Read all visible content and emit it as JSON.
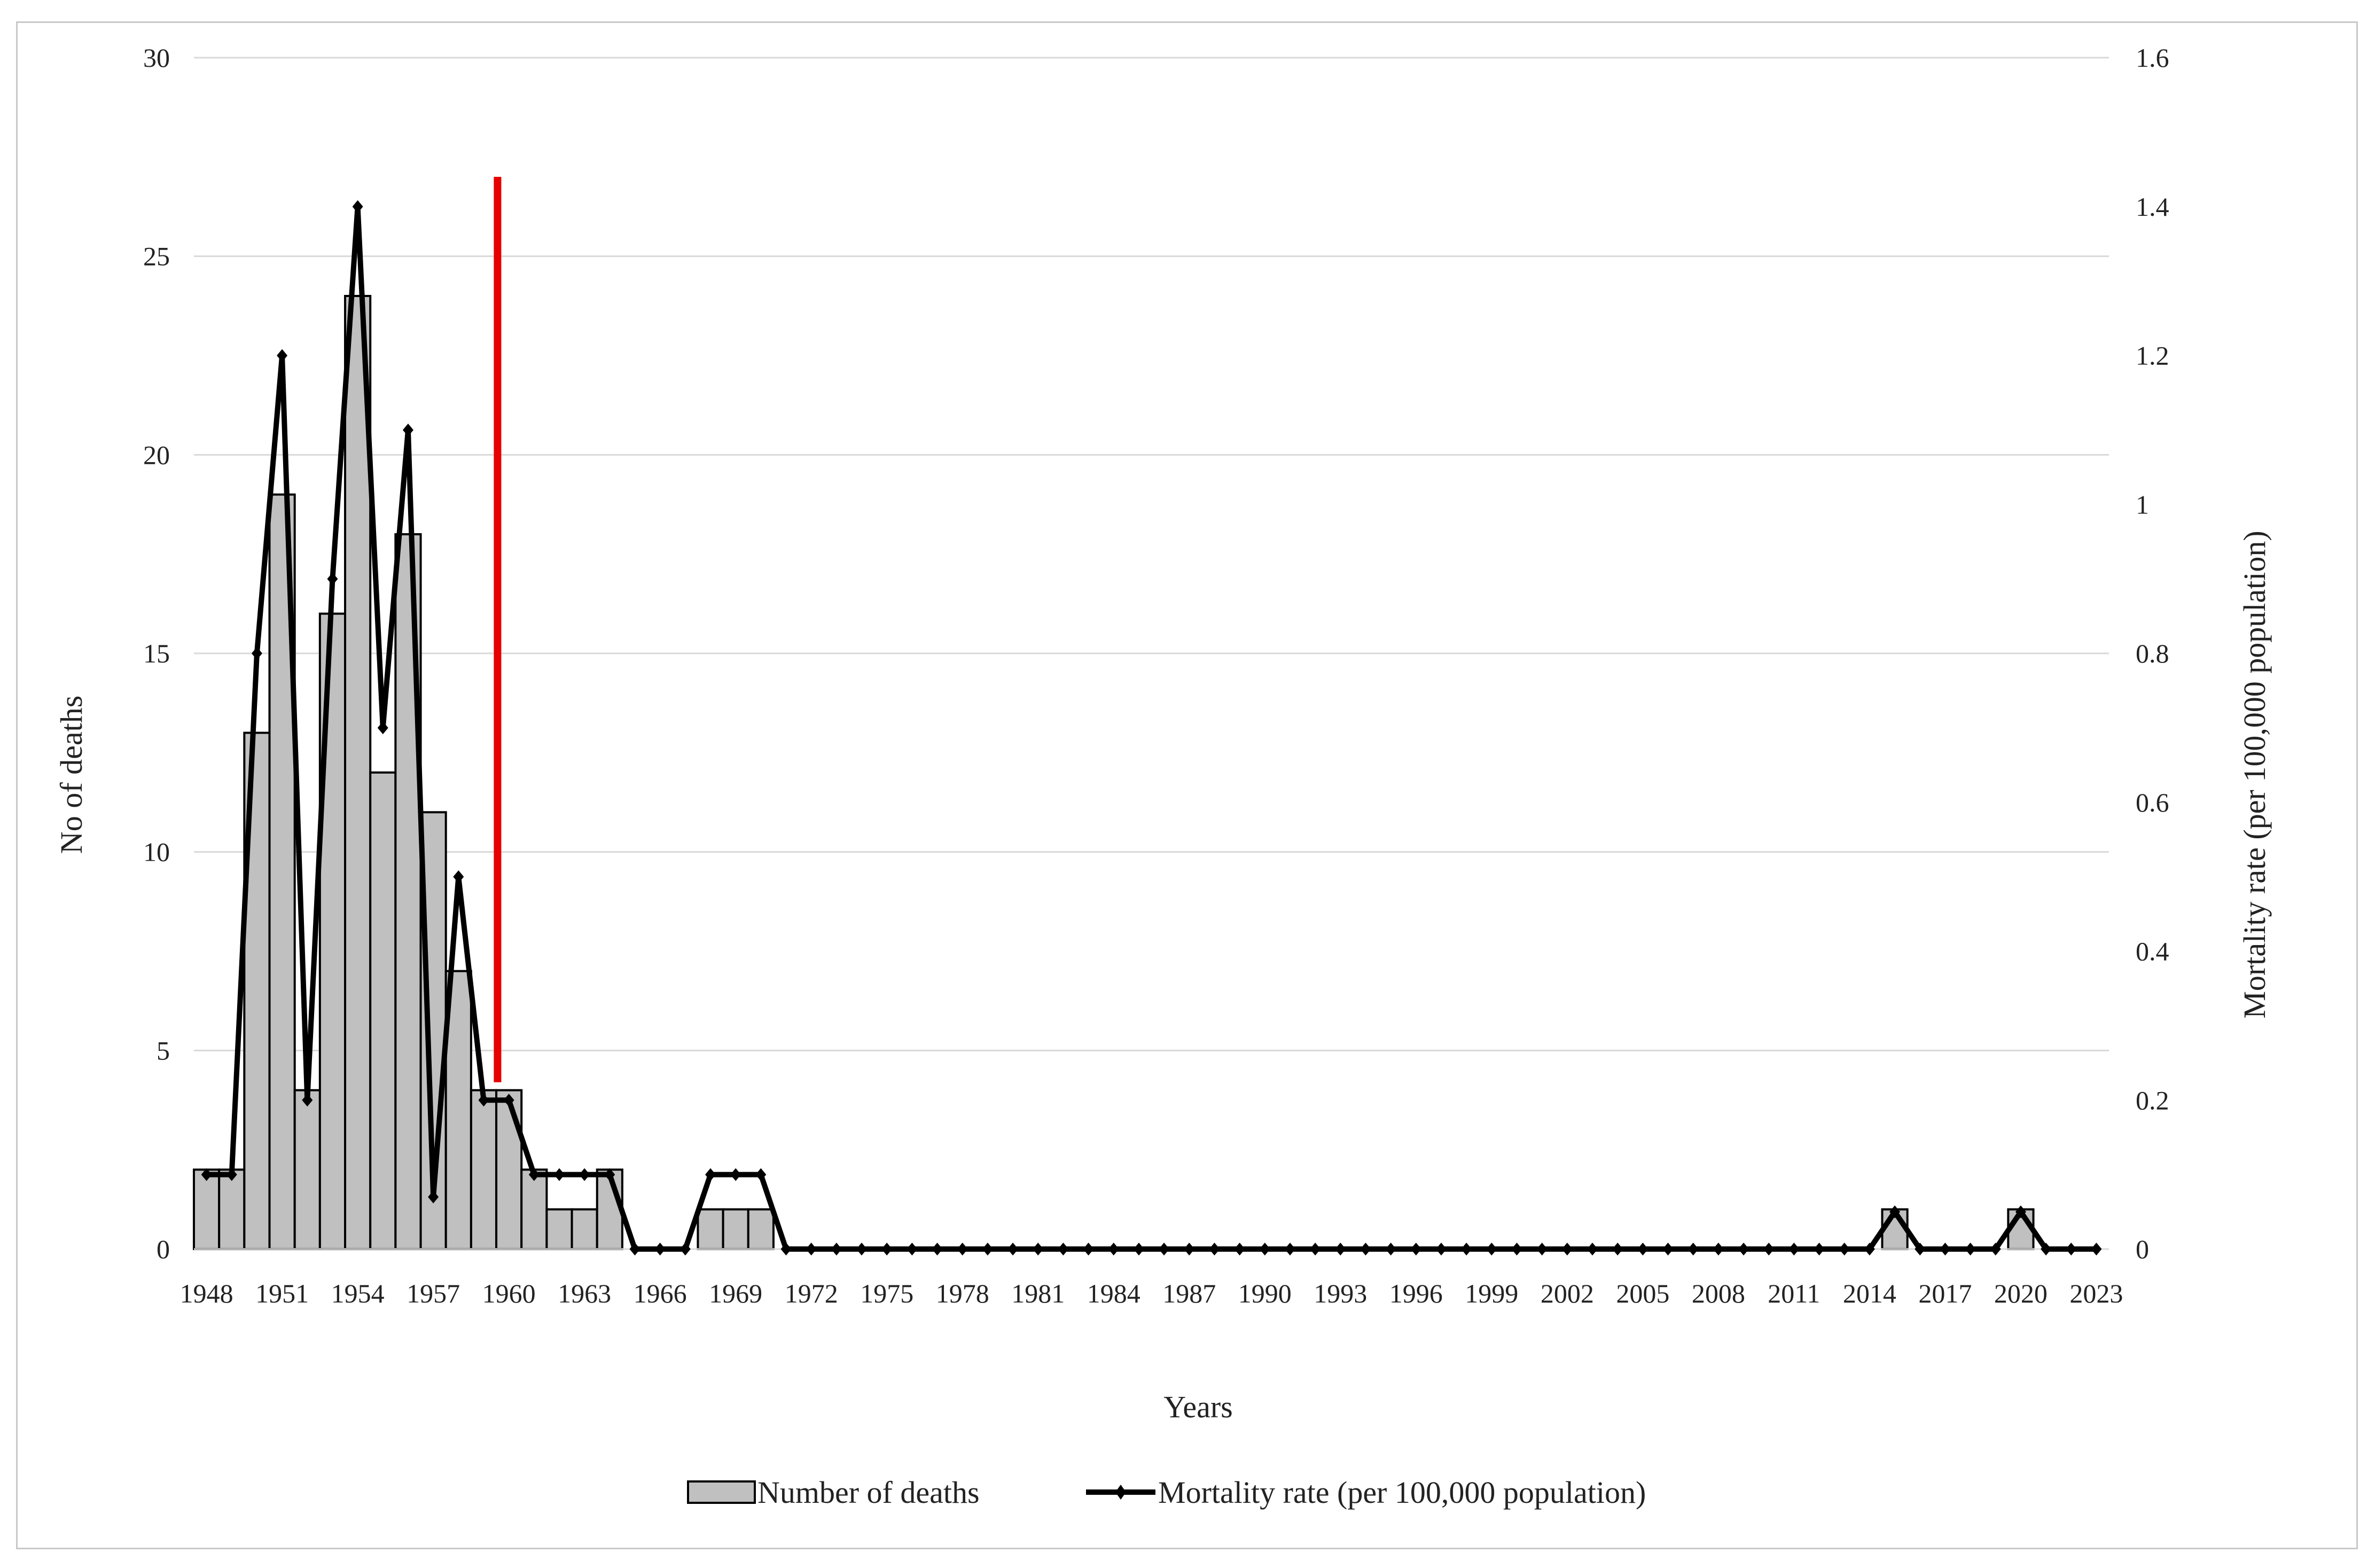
{
  "chart_data": {
    "type": "bar",
    "title": "",
    "xlabel": "Years",
    "ylabel": "No of deaths",
    "y2label": "Mortality rate (per 100,000 population)",
    "ylim": [
      0,
      30
    ],
    "y2lim": [
      0,
      1.6
    ],
    "yticks": [
      "0",
      "5",
      "10",
      "15",
      "20",
      "25",
      "30"
    ],
    "y2ticks": [
      "0",
      "0.2",
      "0.4",
      "0.6",
      "0.8",
      "1",
      "1.2",
      "1.4",
      "1.6"
    ],
    "xtick_labels": [
      "1948",
      "1951",
      "1954",
      "1957",
      "1960",
      "1963",
      "1966",
      "1969",
      "1972",
      "1975",
      "1978",
      "1981",
      "1984",
      "1987",
      "1990",
      "1993",
      "1996",
      "1999",
      "2002",
      "2005",
      "2008",
      "2011",
      "2014",
      "2017",
      "2020",
      "2023"
    ],
    "grid": true,
    "legend_position": "bottom",
    "x": [
      1948,
      1949,
      1950,
      1951,
      1952,
      1953,
      1954,
      1955,
      1956,
      1957,
      1958,
      1959,
      1960,
      1961,
      1962,
      1963,
      1964,
      1965,
      1966,
      1967,
      1968,
      1969,
      1970,
      1971,
      1972,
      1973,
      1974,
      1975,
      1976,
      1977,
      1978,
      1979,
      1980,
      1981,
      1982,
      1983,
      1984,
      1985,
      1986,
      1987,
      1988,
      1989,
      1990,
      1991,
      1992,
      1993,
      1994,
      1995,
      1996,
      1997,
      1998,
      1999,
      2000,
      2001,
      2002,
      2003,
      2004,
      2005,
      2006,
      2007,
      2008,
      2009,
      2010,
      2011,
      2012,
      2013,
      2014,
      2015,
      2016,
      2017,
      2018,
      2019,
      2020,
      2021,
      2022,
      2023
    ],
    "series": [
      {
        "name": "Number of deaths",
        "type": "bar",
        "axis": "left",
        "color": "#c0c0c0",
        "values": [
          2,
          2,
          13,
          19,
          4,
          16,
          24,
          12,
          18,
          11,
          7,
          4,
          4,
          2,
          1,
          1,
          2,
          0,
          0,
          0,
          1,
          1,
          1,
          0,
          0,
          0,
          0,
          0,
          0,
          0,
          0,
          0,
          0,
          0,
          0,
          0,
          0,
          0,
          0,
          0,
          0,
          0,
          0,
          0,
          0,
          0,
          0,
          0,
          0,
          0,
          0,
          0,
          0,
          0,
          0,
          0,
          0,
          0,
          0,
          0,
          0,
          0,
          0,
          0,
          0,
          0,
          0,
          1,
          0,
          0,
          0,
          0,
          1,
          0,
          0,
          0
        ]
      },
      {
        "name": "Mortality rate (per 100,000 population)",
        "type": "line",
        "axis": "right",
        "color": "#000000",
        "marker": "diamond",
        "values": [
          0.1,
          0.1,
          0.8,
          1.2,
          0.2,
          0.9,
          1.4,
          0.7,
          1.1,
          0.07,
          0.5,
          0.2,
          0.2,
          0.1,
          0.1,
          0.1,
          0.1,
          0,
          0,
          0,
          0.1,
          0.1,
          0.1,
          0,
          0,
          0,
          0,
          0,
          0,
          0,
          0,
          0,
          0,
          0,
          0,
          0,
          0,
          0,
          0,
          0,
          0,
          0,
          0,
          0,
          0,
          0,
          0,
          0,
          0,
          0,
          0,
          0,
          0,
          0,
          0,
          0,
          0,
          0,
          0,
          0,
          0,
          0,
          0,
          0,
          0,
          0,
          0,
          0.05,
          0,
          0,
          0,
          0,
          0.05,
          0,
          0,
          0
        ]
      }
    ],
    "annotations": [
      {
        "type": "vertical-line",
        "x": 1960,
        "color": "#e60000",
        "y_top": 27,
        "y_bottom": 4.2
      }
    ]
  }
}
